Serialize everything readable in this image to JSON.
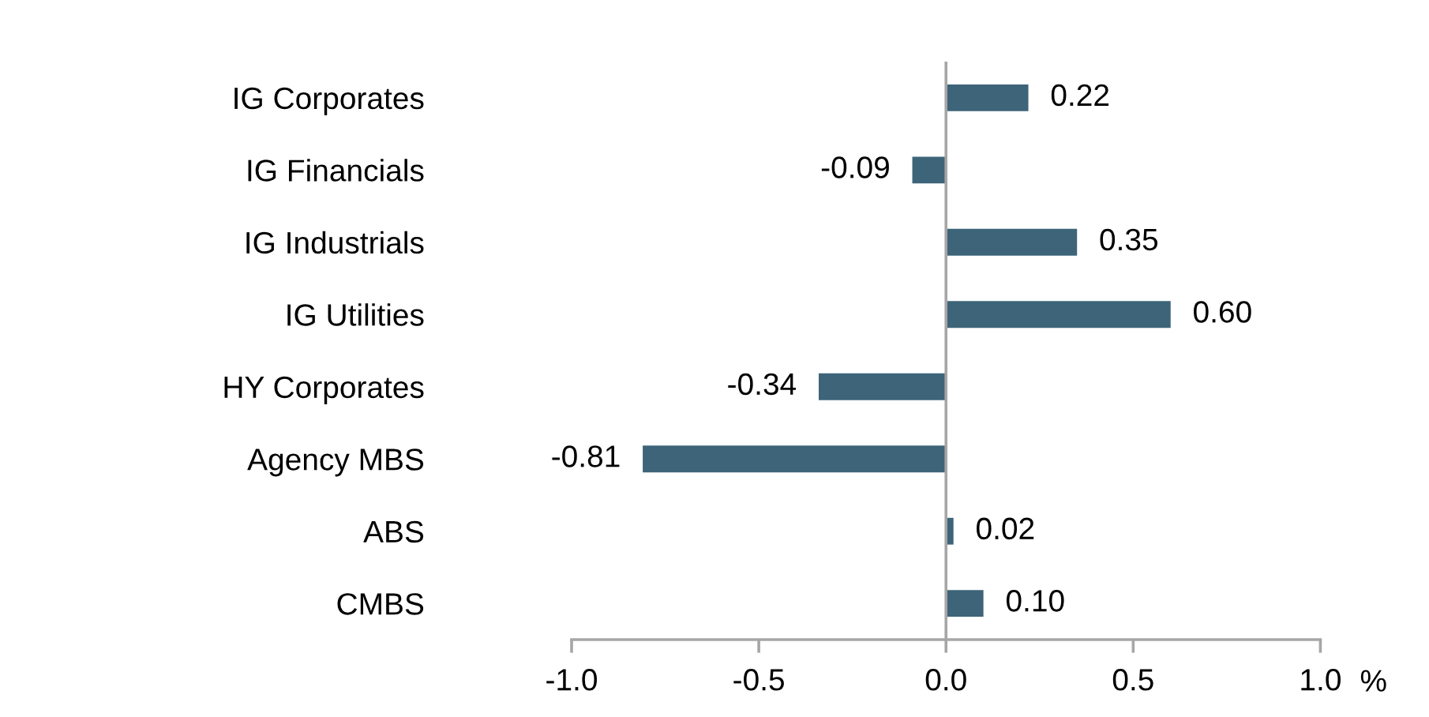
{
  "chart_data": {
    "type": "bar",
    "orientation": "horizontal",
    "categories": [
      "IG Corporates",
      "IG Financials",
      "IG Industrials",
      "IG Utilities",
      "HY Corporates",
      "Agency MBS",
      "ABS",
      "CMBS"
    ],
    "values": [
      0.22,
      -0.09,
      0.35,
      0.6,
      -0.34,
      -0.81,
      0.02,
      0.1
    ],
    "value_labels": [
      "0.22",
      "-0.09",
      "0.35",
      "0.60",
      "-0.34",
      "-0.81",
      "0.02",
      "0.10"
    ],
    "color": "#3d6479",
    "xlabel": "%",
    "xlim": [
      -1.0,
      1.0
    ],
    "xticks": [
      {
        "value": -1.0,
        "label": "-1.0"
      },
      {
        "value": -0.5,
        "label": "-0.5"
      },
      {
        "value": 0.0,
        "label": "0.0"
      },
      {
        "value": 0.5,
        "label": "0.5"
      },
      {
        "value": 1.0,
        "label": "1.0"
      }
    ],
    "ref_lines": [
      {
        "axis": "x",
        "value": 0,
        "color": "#a6a6a6"
      }
    ]
  }
}
